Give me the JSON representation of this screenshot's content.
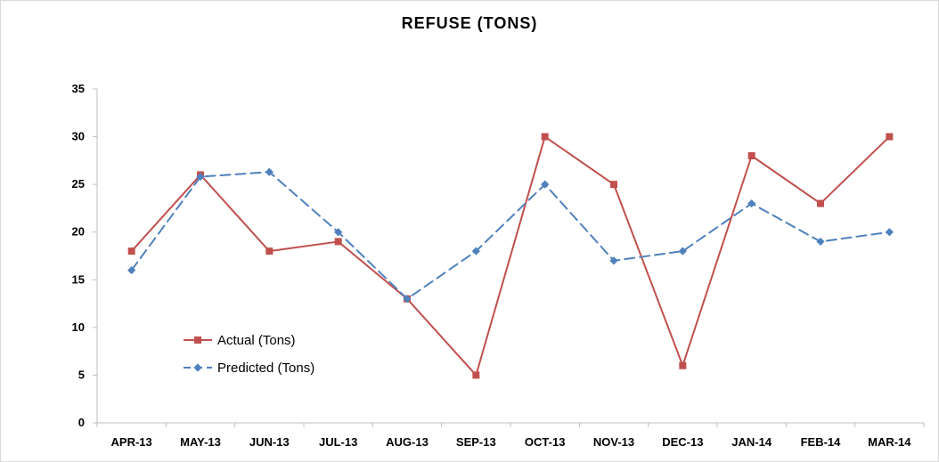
{
  "chart_data": {
    "type": "line",
    "title": "REFUSE (TONS)",
    "xlabel": "",
    "ylabel": "",
    "categories": [
      "APR-13",
      "MAY-13",
      "JUN-13",
      "JUL-13",
      "AUG-13",
      "SEP-13",
      "OCT-13",
      "NOV-13",
      "DEC-13",
      "JAN-14",
      "FEB-14",
      "MAR-14"
    ],
    "ylim": [
      0,
      35
    ],
    "yticks": [
      "0",
      "5",
      "10",
      "15",
      "20",
      "25",
      "30",
      "35"
    ],
    "grid": false,
    "legend_position": "left-inside-bottom",
    "series": [
      {
        "name": "Actual (Tons)",
        "values": [
          18,
          26,
          18,
          19,
          13,
          5,
          30,
          25,
          6,
          28,
          23,
          30
        ],
        "color": "#c0504d",
        "marker": "square",
        "line_style": "solid"
      },
      {
        "name": "Predicted (Tons)",
        "values": [
          16,
          25.8,
          26.3,
          20,
          13,
          18,
          25,
          17,
          18,
          23,
          19,
          20
        ],
        "color": "#4f81bd",
        "marker": "diamond",
        "line_style": "dashed"
      }
    ]
  }
}
